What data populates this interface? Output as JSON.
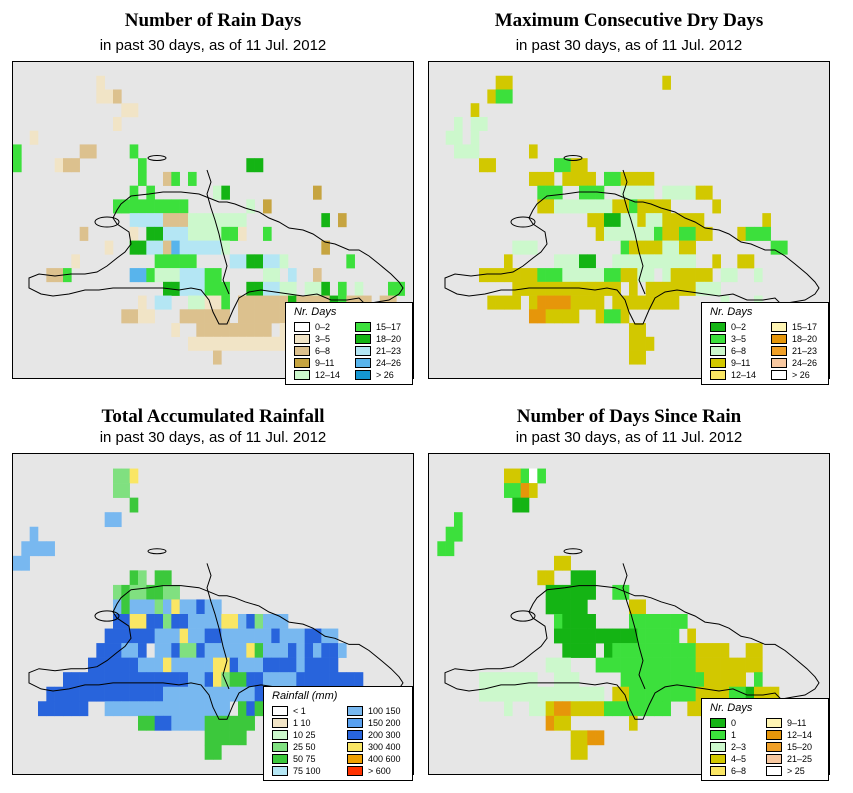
{
  "panels": [
    {
      "title": "Number of Rain Days",
      "subtitle": "in past 30 days, as of  11 Jul. 2012",
      "legend": {
        "title": "Nr. Days",
        "items": [
          {
            "label": "0–2",
            "color": "#ffffff"
          },
          {
            "label": "3–5",
            "color": "#f1e4c6"
          },
          {
            "label": "6–8",
            "color": "#dcc18e"
          },
          {
            "label": "9–11",
            "color": "#c6a440"
          },
          {
            "label": "12–14",
            "color": "#ccf8cc"
          },
          {
            "label": "15–17",
            "color": "#3ce03c"
          },
          {
            "label": "18–20",
            "color": "#14b414"
          },
          {
            "label": "21–23",
            "color": "#b4e6f4"
          },
          {
            "label": "24–26",
            "color": "#58b4ec"
          },
          {
            "label": "> 26",
            "color": "#1496d2"
          }
        ]
      }
    },
    {
      "title": "Maximum Consecutive Dry Days",
      "subtitle": "in past 30 days, as of  11 Jul. 2012",
      "legend": {
        "title": "Nr. Days",
        "items": [
          {
            "label": "0–2",
            "color": "#14b414"
          },
          {
            "label": "3–5",
            "color": "#3ce03c"
          },
          {
            "label": "6–8",
            "color": "#ccf8cc"
          },
          {
            "label": "9–11",
            "color": "#d2c800"
          },
          {
            "label": "12–14",
            "color": "#fae664"
          },
          {
            "label": "15–17",
            "color": "#fff5b4"
          },
          {
            "label": "18–20",
            "color": "#e6960a"
          },
          {
            "label": "21–23",
            "color": "#f0a028"
          },
          {
            "label": "24–26",
            "color": "#f8c8a0"
          },
          {
            "label": "> 26",
            "color": "#ffffff"
          }
        ]
      }
    },
    {
      "title": "Total Accumulated Rainfall",
      "subtitle": "in past 30 days, as of  11 Jul. 2012",
      "legend": {
        "title": "Rainfall (mm)",
        "items": [
          {
            "label": "< 1",
            "color": "#ffffff"
          },
          {
            "label": "1   10",
            "color": "#f1e4c6"
          },
          {
            "label": "10   25",
            "color": "#ccf8cc"
          },
          {
            "label": "25   50",
            "color": "#80e080"
          },
          {
            "label": "50   75",
            "color": "#3cc83c"
          },
          {
            "label": "75   100",
            "color": "#b4e6f4"
          },
          {
            "label": "100   150",
            "color": "#78b8f0"
          },
          {
            "label": "150   200",
            "color": "#58a0f0"
          },
          {
            "label": "200   300",
            "color": "#2864dc"
          },
          {
            "label": "300   400",
            "color": "#fae664"
          },
          {
            "label": "400   600",
            "color": "#f0a000"
          },
          {
            "label": "> 600",
            "color": "#ff3200"
          }
        ]
      }
    },
    {
      "title": "Number of Days Since Rain",
      "subtitle": "in past 30 days, as of  11 Jul. 2012",
      "legend": {
        "title": "Nr. Days",
        "items": [
          {
            "label": "0",
            "color": "#14b414"
          },
          {
            "label": "1",
            "color": "#3ce03c"
          },
          {
            "label": "2–3",
            "color": "#ccf8cc"
          },
          {
            "label": "4–5",
            "color": "#d2c800"
          },
          {
            "label": "6–8",
            "color": "#fae664"
          },
          {
            "label": "9–11",
            "color": "#fff5b4"
          },
          {
            "label": "12–14",
            "color": "#e6960a"
          },
          {
            "label": "15–20",
            "color": "#f0a028"
          },
          {
            "label": "21–25",
            "color": "#f8c8a0"
          },
          {
            "label": "> 25",
            "color": "#ffffff"
          }
        ]
      }
    }
  ],
  "grids": [
    [
      "................................................",
      "..........3.....................................",
      "..........336...................................",
      ".............33.................................",
      "............3...................................",
      "..3.............................................",
      "4.......66....B.................................",
      "4....366.......B............AA..................",
      "...............5..6B.5..........................",
      "..............B.4.......CA..........9...........",
      "............B4BBBBB44.......C.9.................",
      "..............IIII888CCCCCCC.........A.9........",
      "........6.....3.OOIIICCCC443..B.................",
      "...........3..OOII6HIIIIIC...........9..........",
      ".......3.........BBBBB....IIAAIIC.......B.......",
      "....66B.......HHBCCCIIIBB.....CC.I..6...........",
      "..................OOIIIBBB..AAIICC.CCA.B.C...BB.",
      "...............3.II..CC33B.666666A6666AB666.66..",
      ".............6633...666666.66666666666663.......",
      "...................3..666666666.333.............",
      ".....................3333333333333..............",
      "........................6.......................",
      ".........................................33....."
    ],
    [
      "................................................",
      "........99..................9...................",
      ".......9AA......................................",
      ".....9.........................................",
      "...C.CC.........................................",
      "..CC.C...........................................",
      "...CCC......9...................................",
      "......99.......AA99.............................",
      "............999.9999.AA9999......................",
      ".............AAA..AAA..CCCC.CCCC99..............",
      ".............99CCCCCCC99A9999.....9.............",
      "...................99BBCC9CC99999.......9........",
      "....................9CCCCCCA99AA99...9AAA.......",
      "..........CCC..........A9999CC99.........AA.....",
      ".........9.....CCCBB..CCCCCCCCCC..9..99.........",
      "......9999999AAACCCCCAA99CC.C99999.CC..C........",
      "..........9999999999999.9.999999CCC.............",
      ".......9999.9EEEE9999.99999999.....C...C........",
      "............EE9999..9AA9........................",
      "........................99.....................",
      "........................999.....................",
      "........................99......................",
      "................................................"
    ],
    [
      "................................................",
      "............CCK.................................",
      "............CC..................................",
      "..............M.................................",
      "...........LL...................................",
      "..L.............................................",
      ".LLLL...........................................",
      "LL..............................................",
      "..............MC.MM.............................",
      "............CMCCMMCC............................",
      "............LMLLLCLKLLNLL.......................",
      "............NNKKNNCNNLLLLKKLNCLLL................",
      "...........NNNNNNLLLKLLNNLLLLLLNLLLNNLL..........",
      "..........NNNLLN.LLNCCNLLLLLKMLLLNLNLNNL.........",
      ".........NNNNNNLLLKLLLLLKKNLLLNNNNLNNNN.........",
      "......NNNNNNNNNNNNNNNLLNKCMMNNLLLLNNNNNNNN.......",
      "....NNNNNNNNNNNNNNLLLLLLLLLLLNNLNNNLNN...........",
      "...NNNNNN..LLLLLLLLLLLLLLL.MNMMMMLLLLNNN........",
      "...............MMNNLLLLMMMMMM...................",
      ".......................MMMMM.....................",
      ".......................MM.......................",
      "................................................"
    ],
    [
      "................................................",
      ".........99AGA..................................",
      ".........AAE9...................................",
      "..........BB....................................",
      "...A............................................",
      "..AA............................................",
      ".AA.............................................",
      "...............99...............................",
      ".............99..BBB.............................",
      "..............BBBBBB..AA..........................",
      "..............BBBBB.....99.......................",
      "...............ABBBB....AAAAAAA..................",
      "...............BBBBBBBBBBAAAAA.9.................",
      "................BBBB.BAAAAAAAAAA9999..99.........",
      "..............CCC...AAAAAAAAAAAA99999999........",
      "......CCCCCCC..CCC.....AAAAAAAAAA99999.A.........",
      "......CCCCCCCCCCCCCCC.99AAAAAAAA9999AAB999.........",
      ".........C..CC9EE9999AAAAAAAA..9999CCCCCC9.......",
      "..............E99.......9.........C......C......",
      ".................99EE...........................",
      ".................99..............................",
      "................................................"
    ]
  ]
}
